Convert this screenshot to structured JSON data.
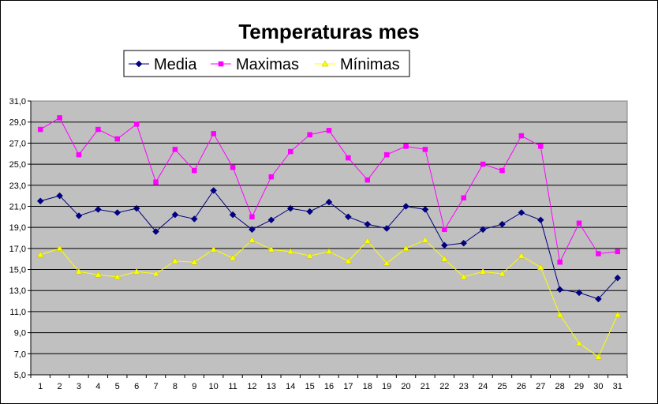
{
  "chart_data": {
    "type": "line",
    "title": "Temperaturas mes",
    "xlabel": "",
    "ylabel": "",
    "x": [
      1,
      2,
      3,
      4,
      5,
      6,
      7,
      8,
      9,
      10,
      11,
      12,
      13,
      14,
      15,
      16,
      17,
      18,
      19,
      20,
      21,
      22,
      23,
      24,
      25,
      26,
      27,
      28,
      29,
      30,
      31
    ],
    "y_ticks": [
      "5,0",
      "7,0",
      "9,0",
      "11,0",
      "13,0",
      "15,0",
      "17,0",
      "19,0",
      "21,0",
      "23,0",
      "25,0",
      "27,0",
      "29,0",
      "31,0"
    ],
    "ylim": [
      5,
      31
    ],
    "grid": "horizontal",
    "legend_position": "top",
    "plot_background": "#c0c0c0",
    "series": [
      {
        "name": "Media",
        "color": "#000080",
        "marker": "diamond",
        "values": [
          21.5,
          22.0,
          20.1,
          20.7,
          20.4,
          20.8,
          18.6,
          20.2,
          19.8,
          22.5,
          20.2,
          18.8,
          19.7,
          20.8,
          20.5,
          21.4,
          20.0,
          19.3,
          18.9,
          21.0,
          20.7,
          17.3,
          17.5,
          18.8,
          19.3,
          20.4,
          19.7,
          13.1,
          12.8,
          12.2,
          14.2
        ]
      },
      {
        "name": "Maximas",
        "color": "#ff00ff",
        "marker": "square",
        "values": [
          28.3,
          29.4,
          25.9,
          28.3,
          27.4,
          28.8,
          23.3,
          26.4,
          24.4,
          27.9,
          24.7,
          20.0,
          23.8,
          26.2,
          27.8,
          28.2,
          25.6,
          23.5,
          25.9,
          26.7,
          26.4,
          18.8,
          21.8,
          25.0,
          24.4,
          27.7,
          26.7,
          15.7,
          19.4,
          16.5,
          16.7
        ]
      },
      {
        "name": "Mínimas",
        "color": "#ffff00",
        "marker": "triangle",
        "values": [
          16.4,
          17.0,
          14.8,
          14.5,
          14.3,
          14.8,
          14.6,
          15.8,
          15.7,
          16.9,
          16.1,
          17.8,
          16.9,
          16.7,
          16.3,
          16.7,
          15.8,
          17.7,
          15.6,
          17.0,
          17.8,
          16.0,
          14.3,
          14.8,
          14.6,
          16.3,
          15.2,
          10.7,
          8.0,
          6.7,
          10.7
        ]
      }
    ]
  }
}
